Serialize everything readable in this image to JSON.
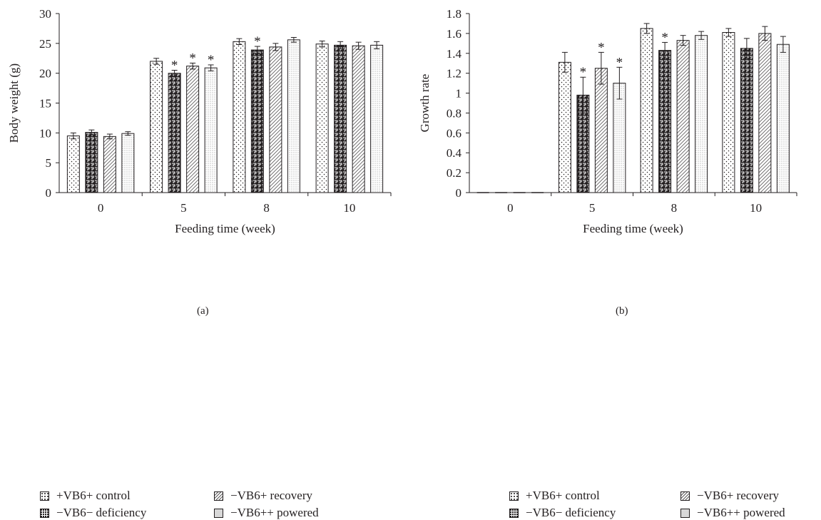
{
  "legend": [
    {
      "label": "+VB6+ control",
      "pattern": "dots"
    },
    {
      "label": "−VB6− deficiency",
      "pattern": "maze"
    },
    {
      "label": "−VB6+ recovery",
      "pattern": "diag"
    },
    {
      "label": "−VB6++ powered",
      "pattern": "fine"
    }
  ],
  "chart_data": [
    {
      "panel_label": "(a)",
      "type": "bar",
      "xlabel": "Feeding time (week)",
      "ylabel": "Body weight (g)",
      "ylim": [
        0,
        30
      ],
      "yticks": [
        "0",
        "5",
        "10",
        "15",
        "20",
        "25",
        "30"
      ],
      "categories": [
        "0",
        "5",
        "8",
        "10"
      ],
      "series": [
        {
          "name": "+VB6+ control",
          "values": [
            9.5,
            22.0,
            25.3,
            24.9
          ],
          "errors": [
            0.5,
            0.5,
            0.5,
            0.5
          ],
          "significant": [
            false,
            false,
            false,
            false
          ]
        },
        {
          "name": "−VB6− deficiency",
          "values": [
            10.1,
            20.0,
            23.9,
            24.7
          ],
          "errors": [
            0.4,
            0.5,
            0.6,
            0.6
          ],
          "significant": [
            false,
            true,
            true,
            false
          ]
        },
        {
          "name": "−VB6+ recovery",
          "values": [
            9.4,
            21.2,
            24.4,
            24.6
          ],
          "errors": [
            0.4,
            0.5,
            0.6,
            0.6
          ],
          "significant": [
            false,
            true,
            false,
            false
          ]
        },
        {
          "name": "−VB6++ powered",
          "values": [
            9.9,
            20.9,
            25.6,
            24.7
          ],
          "errors": [
            0.3,
            0.5,
            0.4,
            0.6
          ],
          "significant": [
            false,
            true,
            false,
            false
          ]
        }
      ],
      "annotation_symbol": "*",
      "grid": false
    },
    {
      "panel_label": "(b)",
      "type": "bar",
      "xlabel": "Feeding time (week)",
      "ylabel": "Growth rate",
      "ylim": [
        0,
        1.8
      ],
      "yticks": [
        "0",
        "0.2",
        "0.4",
        "0.6",
        "0.8",
        "1",
        "1.2",
        "1.4",
        "1.6",
        "1.8"
      ],
      "categories": [
        "0",
        "5",
        "8",
        "10"
      ],
      "series": [
        {
          "name": "+VB6+ control",
          "values": [
            0,
            1.31,
            1.65,
            1.61
          ],
          "errors": [
            0,
            0.1,
            0.05,
            0.04
          ],
          "significant": [
            false,
            false,
            false,
            false
          ]
        },
        {
          "name": "−VB6− deficiency",
          "values": [
            0,
            0.98,
            1.43,
            1.45
          ],
          "errors": [
            0,
            0.18,
            0.08,
            0.1
          ],
          "significant": [
            false,
            true,
            true,
            false
          ]
        },
        {
          "name": "−VB6+ recovery",
          "values": [
            0,
            1.25,
            1.53,
            1.6
          ],
          "errors": [
            0,
            0.16,
            0.05,
            0.07
          ],
          "significant": [
            false,
            true,
            false,
            false
          ]
        },
        {
          "name": "−VB6++ powered",
          "values": [
            0,
            1.1,
            1.58,
            1.49
          ],
          "errors": [
            0,
            0.16,
            0.04,
            0.08
          ],
          "significant": [
            false,
            true,
            false,
            false
          ]
        }
      ],
      "annotation_symbol": "*",
      "grid": false
    }
  ]
}
